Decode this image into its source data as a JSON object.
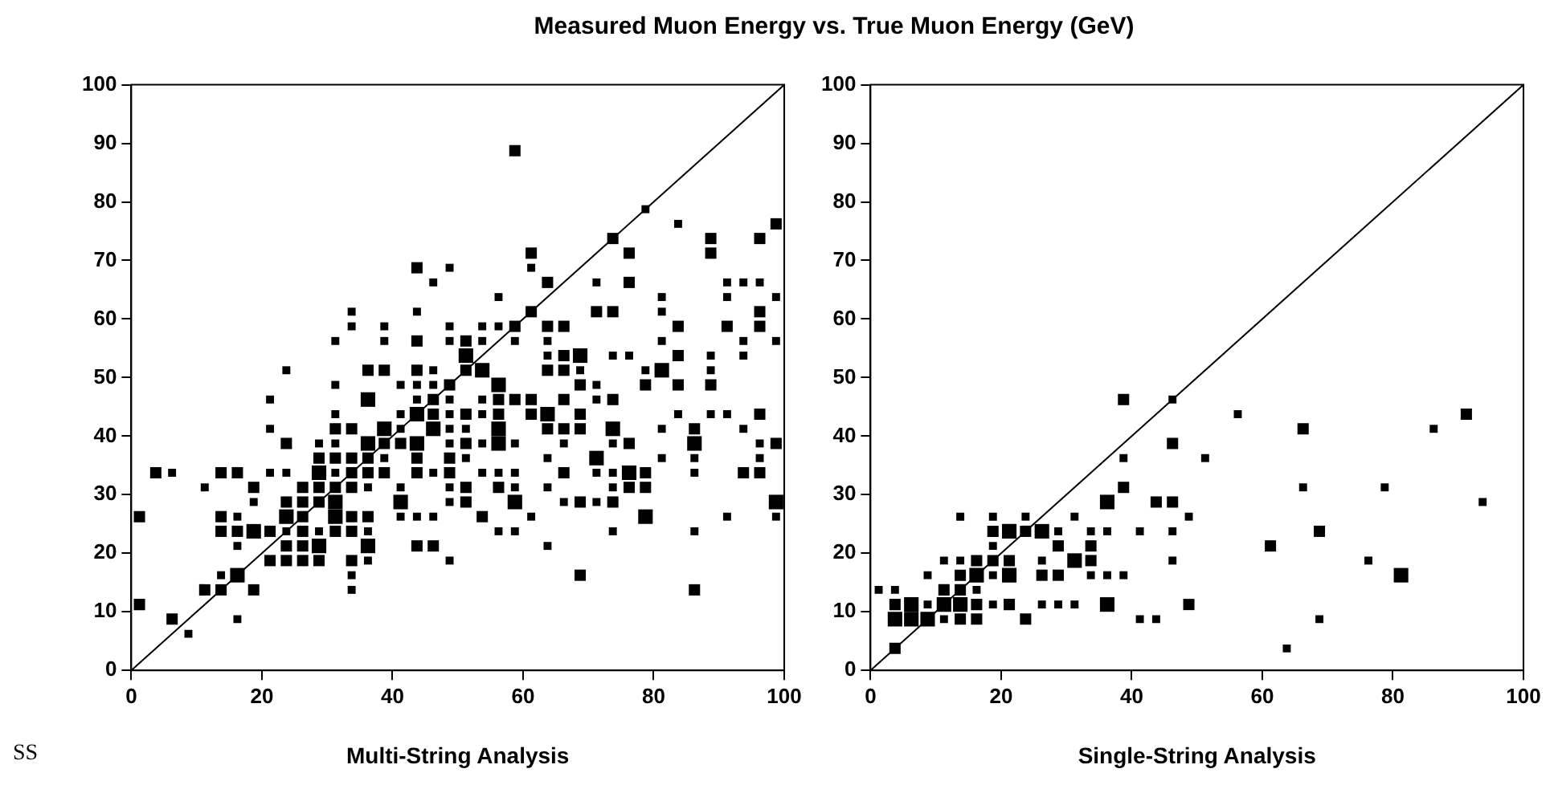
{
  "chart_data": [
    {
      "type": "bubble",
      "title": "Measured Muon Energy vs. True Muon Energy (GeV)",
      "xlabel": "Multi-String Analysis",
      "annotations": [
        "SS"
      ],
      "xlim": [
        0,
        100
      ],
      "ylim": [
        0,
        100
      ],
      "xticks": [
        0,
        20,
        40,
        60,
        80,
        100
      ],
      "yticks": [
        0,
        10,
        20,
        30,
        40,
        50,
        60,
        70,
        80,
        90,
        100
      ],
      "grid": false,
      "legend": false,
      "series": [
        {
          "color": "#000000",
          "marker": "square",
          "x": [
            43.75,
            48.75,
            46.25,
            33.75,
            43.75,
            33.75,
            38.75,
            48.75,
            31.25,
            38.75,
            43.75,
            48.75,
            51.25,
            51.25,
            23.75,
            36.25,
            38.75,
            43.75,
            46.25,
            51.25,
            31.25,
            41.25,
            43.75,
            46.25,
            48.75,
            21.25,
            36.25,
            43.75,
            46.25,
            48.75,
            31.25,
            41.25,
            43.75,
            46.25,
            48.75,
            51.25,
            21.25,
            31.25,
            33.75,
            38.75,
            41.25,
            46.25,
            48.75,
            51.25,
            23.75,
            28.75,
            31.25,
            36.25,
            38.75,
            41.25,
            43.75,
            48.75,
            51.25,
            28.75,
            31.25,
            33.75,
            36.25,
            38.75,
            43.75,
            48.75,
            51.25,
            3.75,
            6.25,
            13.75,
            16.25,
            21.25,
            23.75,
            28.75,
            31.25,
            33.75,
            36.25,
            38.75,
            43.75,
            46.25,
            48.75,
            11.25,
            18.75,
            26.25,
            28.75,
            31.25,
            33.75,
            36.25,
            41.25,
            48.75,
            51.25,
            18.75,
            23.75,
            26.25,
            28.75,
            31.25,
            41.25,
            48.75,
            51.25,
            1.25,
            13.75,
            16.25,
            23.75,
            26.25,
            31.25,
            33.75,
            36.25,
            41.25,
            43.75,
            46.25,
            13.75,
            16.25,
            18.75,
            21.25,
            23.75,
            26.25,
            28.75,
            31.25,
            33.75,
            36.25,
            16.25,
            23.75,
            26.25,
            28.75,
            36.25,
            43.75,
            46.25,
            21.25,
            23.75,
            26.25,
            28.75,
            33.75,
            36.25,
            48.75,
            13.75,
            16.25,
            33.75,
            11.25,
            13.75,
            18.75,
            33.75,
            1.25,
            6.25,
            16.25,
            8.75,
            58.75,
            78.75,
            83.75,
            98.75,
            73.75,
            88.75,
            96.25,
            61.25,
            76.25,
            88.75,
            61.25,
            63.75,
            71.25,
            76.25,
            91.25,
            93.75,
            96.25,
            56.25,
            81.25,
            91.25,
            98.75,
            61.25,
            71.25,
            73.75,
            81.25,
            96.25,
            53.75,
            56.25,
            58.75,
            63.75,
            66.25,
            83.75,
            91.25,
            96.25,
            53.75,
            58.75,
            63.75,
            81.25,
            93.75,
            98.75,
            63.75,
            66.25,
            68.75,
            73.75,
            76.25,
            83.75,
            88.75,
            93.75,
            53.75,
            63.75,
            66.25,
            68.75,
            78.75,
            81.25,
            88.75,
            56.25,
            68.75,
            71.25,
            78.75,
            83.75,
            88.75,
            53.75,
            56.25,
            58.75,
            61.25,
            66.25,
            71.25,
            73.75,
            53.75,
            56.25,
            61.25,
            63.75,
            68.75,
            83.75,
            88.75,
            91.25,
            96.25,
            56.25,
            63.75,
            66.25,
            68.75,
            73.75,
            81.25,
            86.25,
            93.75,
            53.75,
            56.25,
            58.75,
            66.25,
            73.75,
            76.25,
            86.25,
            96.25,
            98.75,
            63.75,
            71.25,
            81.25,
            86.25,
            96.25,
            53.75,
            56.25,
            58.75,
            66.25,
            71.25,
            73.75,
            76.25,
            78.75,
            86.25,
            93.75,
            96.25,
            56.25,
            58.75,
            63.75,
            73.75,
            76.25,
            78.75,
            58.75,
            66.25,
            68.75,
            71.25,
            73.75,
            98.75,
            53.75,
            61.25,
            78.75,
            91.25,
            98.75,
            56.25,
            58.75,
            73.75,
            86.25,
            63.75,
            68.75,
            86.25
          ],
          "values": [
            68.75,
            68.75,
            66.25,
            61.25,
            61.25,
            58.75,
            58.75,
            58.75,
            56.25,
            56.25,
            56.25,
            56.25,
            56.25,
            53.75,
            51.25,
            51.25,
            51.25,
            51.25,
            51.25,
            51.25,
            48.75,
            48.75,
            48.75,
            48.75,
            48.75,
            46.25,
            46.25,
            46.25,
            46.25,
            46.25,
            43.75,
            43.75,
            43.75,
            43.75,
            43.75,
            43.75,
            41.25,
            41.25,
            41.25,
            41.25,
            41.25,
            41.25,
            41.25,
            41.25,
            38.75,
            38.75,
            38.75,
            38.75,
            38.75,
            38.75,
            38.75,
            38.75,
            38.75,
            36.25,
            36.25,
            36.25,
            36.25,
            36.25,
            36.25,
            36.25,
            36.25,
            33.75,
            33.75,
            33.75,
            33.75,
            33.75,
            33.75,
            33.75,
            33.75,
            33.75,
            33.75,
            33.75,
            33.75,
            33.75,
            33.75,
            31.25,
            31.25,
            31.25,
            31.25,
            31.25,
            31.25,
            31.25,
            31.25,
            31.25,
            31.25,
            28.75,
            28.75,
            28.75,
            28.75,
            28.75,
            28.75,
            28.75,
            28.75,
            26.25,
            26.25,
            26.25,
            26.25,
            26.25,
            26.25,
            26.25,
            26.25,
            26.25,
            26.25,
            26.25,
            23.75,
            23.75,
            23.75,
            23.75,
            23.75,
            23.75,
            23.75,
            23.75,
            23.75,
            23.75,
            21.25,
            21.25,
            21.25,
            21.25,
            21.25,
            21.25,
            21.25,
            18.75,
            18.75,
            18.75,
            18.75,
            18.75,
            18.75,
            18.75,
            16.25,
            16.25,
            16.25,
            13.75,
            13.75,
            13.75,
            13.75,
            11.25,
            8.75,
            8.75,
            6.25,
            88.75,
            78.75,
            76.25,
            76.25,
            73.75,
            73.75,
            73.75,
            71.25,
            71.25,
            71.25,
            68.75,
            66.25,
            66.25,
            66.25,
            66.25,
            66.25,
            66.25,
            63.75,
            63.75,
            63.75,
            63.75,
            61.25,
            61.25,
            61.25,
            61.25,
            61.25,
            58.75,
            58.75,
            58.75,
            58.75,
            58.75,
            58.75,
            58.75,
            58.75,
            56.25,
            56.25,
            56.25,
            56.25,
            56.25,
            56.25,
            53.75,
            53.75,
            53.75,
            53.75,
            53.75,
            53.75,
            53.75,
            53.75,
            51.25,
            51.25,
            51.25,
            51.25,
            51.25,
            51.25,
            51.25,
            48.75,
            48.75,
            48.75,
            48.75,
            48.75,
            48.75,
            46.25,
            46.25,
            46.25,
            46.25,
            46.25,
            46.25,
            46.25,
            43.75,
            43.75,
            43.75,
            43.75,
            43.75,
            43.75,
            43.75,
            43.75,
            43.75,
            41.25,
            41.25,
            41.25,
            41.25,
            41.25,
            41.25,
            41.25,
            41.25,
            38.75,
            38.75,
            38.75,
            38.75,
            38.75,
            38.75,
            38.75,
            38.75,
            38.75,
            36.25,
            36.25,
            36.25,
            36.25,
            36.25,
            33.75,
            33.75,
            33.75,
            33.75,
            33.75,
            33.75,
            33.75,
            33.75,
            33.75,
            33.75,
            33.75,
            31.25,
            31.25,
            31.25,
            31.25,
            31.25,
            31.25,
            28.75,
            28.75,
            28.75,
            28.75,
            28.75,
            28.75,
            26.25,
            26.25,
            26.25,
            26.25,
            26.25,
            23.75,
            23.75,
            23.75,
            23.75,
            21.25,
            16.25,
            13.75
          ],
          "sizes": [
            0.6,
            0.3,
            0.3,
            0.3,
            0.3,
            0.3,
            0.3,
            0.3,
            0.3,
            0.3,
            0.6,
            0.3,
            0.6,
            1,
            0.3,
            0.6,
            0.6,
            0.6,
            0.3,
            0.6,
            0.3,
            0.3,
            0.3,
            0.3,
            0.6,
            0.3,
            1,
            0.3,
            0.6,
            0.3,
            0.3,
            0.3,
            1,
            0.6,
            0.3,
            0.6,
            0.3,
            0.6,
            0.6,
            1,
            0.3,
            1,
            0.3,
            0.3,
            0.6,
            0.3,
            0.3,
            1,
            0.6,
            0.6,
            1,
            0.3,
            0.6,
            0.6,
            0.6,
            0.6,
            0.6,
            0.3,
            0.6,
            0.6,
            0.3,
            0.6,
            0.3,
            0.6,
            0.6,
            0.3,
            0.3,
            1,
            0.3,
            0.6,
            0.6,
            0.6,
            0.6,
            0.3,
            0.6,
            0.3,
            0.6,
            0.6,
            0.6,
            0.6,
            0.6,
            0.3,
            0.3,
            0.3,
            0.6,
            0.3,
            0.6,
            0.6,
            0.6,
            1,
            1,
            0.3,
            0.6,
            0.6,
            0.6,
            0.3,
            1,
            0.6,
            1,
            0.6,
            0.6,
            0.3,
            0.3,
            0.3,
            0.6,
            0.6,
            1,
            0.6,
            0.3,
            0.6,
            0.3,
            0.6,
            0.6,
            0.3,
            0.3,
            0.6,
            0.6,
            1,
            1,
            0.6,
            0.6,
            0.6,
            0.6,
            0.6,
            0.6,
            0.6,
            0.3,
            0.3,
            0.3,
            1,
            0.3,
            0.6,
            0.6,
            0.6,
            0.3,
            0.6,
            0.6,
            0.3,
            0.3,
            0.6,
            0.3,
            0.3,
            0.6,
            0.6,
            0.6,
            0.6,
            0.6,
            0.6,
            0.6,
            0.3,
            0.6,
            0.3,
            0.6,
            0.3,
            0.3,
            0.3,
            0.3,
            0.3,
            0.3,
            0.3,
            0.6,
            0.6,
            0.6,
            0.3,
            0.6,
            0.3,
            0.3,
            0.6,
            0.6,
            0.6,
            0.6,
            0.6,
            0.6,
            0.3,
            0.3,
            0.3,
            0.3,
            0.3,
            0.3,
            0.3,
            0.6,
            1,
            0.3,
            0.3,
            0.6,
            0.3,
            0.3,
            1,
            0.6,
            0.6,
            0.3,
            0.3,
            1,
            0.3,
            1,
            0.6,
            0.3,
            0.6,
            0.6,
            0.6,
            0.3,
            0.6,
            0.6,
            0.6,
            0.6,
            0.3,
            0.6,
            0.3,
            0.6,
            0.6,
            1,
            0.6,
            0.3,
            0.3,
            0.3,
            0.6,
            1,
            0.6,
            0.6,
            0.6,
            1,
            0.3,
            0.6,
            0.3,
            0.3,
            1,
            0.3,
            0.3,
            0.3,
            0.6,
            1,
            0.3,
            0.6,
            0.3,
            1,
            0.3,
            0.3,
            0.3,
            0.3,
            0.3,
            0.3,
            0.6,
            0.3,
            0.3,
            1,
            0.6,
            0.3,
            0.6,
            0.6,
            0.6,
            0.3,
            0.3,
            0.3,
            0.6,
            0.6,
            1,
            0.3,
            0.6,
            0.3,
            0.6,
            1,
            0.6,
            0.3,
            1,
            0.3,
            0.3,
            0.3,
            0.3,
            0.3,
            0.3,
            0.3,
            0.6,
            0.6
          ]
        },
        {
          "type": "line",
          "color": "#000000",
          "x": [
            0,
            100
          ],
          "values": [
            0,
            100
          ]
        }
      ]
    },
    {
      "type": "bubble",
      "xlabel": "Single-String Analysis",
      "xlim": [
        0,
        100
      ],
      "ylim": [
        0,
        100
      ],
      "xticks": [
        0,
        20,
        40,
        60,
        80,
        100
      ],
      "yticks": [
        0,
        10,
        20,
        30,
        40,
        50,
        60,
        70,
        80,
        90,
        100
      ],
      "grid": false,
      "legend": false,
      "series": [
        {
          "color": "#000000",
          "marker": "square",
          "x": [
            38.75,
            46.25,
            56.25,
            91.25,
            66.25,
            86.25,
            46.25,
            38.75,
            51.25,
            38.75,
            66.25,
            78.75,
            36.25,
            43.75,
            46.25,
            93.75,
            13.75,
            18.75,
            23.75,
            31.25,
            48.75,
            18.75,
            21.25,
            23.75,
            26.25,
            28.75,
            33.75,
            36.25,
            41.25,
            46.25,
            68.75,
            18.75,
            28.75,
            33.75,
            61.25,
            11.25,
            13.75,
            16.25,
            18.75,
            21.25,
            26.25,
            31.25,
            33.75,
            46.25,
            76.25,
            8.75,
            13.75,
            16.25,
            18.75,
            21.25,
            26.25,
            28.75,
            33.75,
            36.25,
            38.75,
            81.25,
            1.25,
            3.75,
            11.25,
            13.75,
            16.25,
            3.75,
            6.25,
            8.75,
            11.25,
            13.75,
            16.25,
            18.75,
            21.25,
            26.25,
            28.75,
            31.25,
            36.25,
            48.75,
            3.75,
            6.25,
            8.75,
            11.25,
            13.75,
            16.25,
            23.75,
            41.25,
            43.75,
            68.75,
            3.75,
            63.75
          ],
          "values": [
            46.25,
            46.25,
            43.75,
            43.75,
            41.25,
            41.25,
            38.75,
            36.25,
            36.25,
            31.25,
            31.25,
            31.25,
            28.75,
            28.75,
            28.75,
            28.75,
            26.25,
            26.25,
            26.25,
            26.25,
            26.25,
            23.75,
            23.75,
            23.75,
            23.75,
            23.75,
            23.75,
            23.75,
            23.75,
            23.75,
            23.75,
            21.25,
            21.25,
            21.25,
            21.25,
            18.75,
            18.75,
            18.75,
            18.75,
            18.75,
            18.75,
            18.75,
            18.75,
            18.75,
            18.75,
            16.25,
            16.25,
            16.25,
            16.25,
            16.25,
            16.25,
            16.25,
            16.25,
            16.25,
            16.25,
            16.25,
            13.75,
            13.75,
            13.75,
            13.75,
            13.75,
            11.25,
            11.25,
            11.25,
            11.25,
            11.25,
            11.25,
            11.25,
            11.25,
            11.25,
            11.25,
            11.25,
            11.25,
            11.25,
            8.75,
            8.75,
            8.75,
            8.75,
            8.75,
            8.75,
            8.75,
            8.75,
            8.75,
            8.75,
            3.75,
            3.75
          ],
          "sizes": [
            0.6,
            0.3,
            0.3,
            0.6,
            0.6,
            0.3,
            0.6,
            0.3,
            0.3,
            0.6,
            0.3,
            0.3,
            1,
            0.6,
            0.6,
            0.3,
            0.3,
            0.3,
            0.3,
            0.3,
            0.3,
            0.6,
            1,
            0.6,
            1,
            0.3,
            0.3,
            0.3,
            0.3,
            0.3,
            0.6,
            0.3,
            0.6,
            0.6,
            0.6,
            0.3,
            0.3,
            0.6,
            0.6,
            0.6,
            0.3,
            1,
            0.6,
            0.3,
            0.3,
            0.3,
            0.6,
            1,
            0.3,
            1,
            0.6,
            0.6,
            0.3,
            0.3,
            0.3,
            1,
            0.3,
            0.3,
            0.6,
            0.6,
            0.3,
            0.6,
            1,
            0.3,
            1,
            1,
            0.6,
            0.3,
            0.6,
            0.3,
            0.3,
            0.3,
            1,
            0.6,
            1,
            1,
            1,
            0.3,
            0.6,
            0.6,
            0.6,
            0.3,
            0.3,
            0.3,
            0.6,
            0.3
          ]
        },
        {
          "type": "line",
          "color": "#000000",
          "x": [
            0,
            100
          ],
          "values": [
            0,
            100
          ]
        }
      ]
    }
  ]
}
